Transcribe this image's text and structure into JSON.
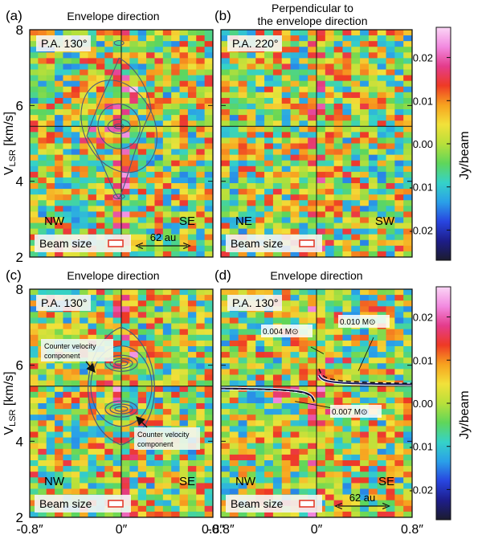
{
  "chart_data": {
    "type": "heatmap",
    "panels": [
      {
        "id": "a",
        "panel_label": "(a)",
        "title": "Envelope direction",
        "pa_label": "P.A. 130°",
        "left_dir": "NW",
        "right_dir": "SE",
        "beam_label": "Beam size",
        "scale_bar_label": "62 au",
        "contours": "observed-model"
      },
      {
        "id": "b",
        "panel_label": "(b)",
        "title": "Perpendicular to\nthe envelope direction",
        "pa_label": "P.A. 220°",
        "left_dir": "NE",
        "right_dir": "SW",
        "beam_label": "Beam size",
        "scale_bar_label": "",
        "contours": "none"
      },
      {
        "id": "c",
        "panel_label": "(c)",
        "title": "Envelope direction",
        "pa_label": "P.A. 130°",
        "left_dir": "NW",
        "right_dir": "SE",
        "beam_label": "Beam size",
        "scale_bar_label": "",
        "contours": "counter-velocity",
        "annotations": [
          {
            "text": "Counter velocity component",
            "position": "upper-left"
          },
          {
            "text": "Counter velocity component",
            "position": "lower-right"
          }
        ]
      },
      {
        "id": "d",
        "panel_label": "(d)",
        "title": "Envelope direction",
        "pa_label": "P.A. 130°",
        "left_dir": "NW",
        "right_dir": "SE",
        "beam_label": "Beam size",
        "scale_bar_label": "62 au",
        "contours": "keplerian-curves",
        "curve_labels": [
          {
            "text": "0.004 M⊙",
            "mass": 0.004
          },
          {
            "text": "0.010 M⊙",
            "mass": 0.01
          },
          {
            "text": "0.007 M⊙",
            "mass": 0.007
          }
        ]
      }
    ],
    "x_axis": {
      "label": "",
      "range": [
        -0.8,
        0.8
      ],
      "unit": "arcsec",
      "ticks": [
        -0.8,
        0.0,
        0.8
      ],
      "tick_labels": [
        "-0.8″",
        "0″",
        "0.8″"
      ]
    },
    "y_axis": {
      "label": "V_LSR [km/s]",
      "label_main": "V",
      "label_sub": "LSR",
      "label_rest": " [km/s]",
      "range": [
        2,
        8
      ],
      "ticks": [
        2,
        4,
        6,
        8
      ],
      "tick_labels": [
        "2",
        "4",
        "6",
        "8"
      ]
    },
    "systemic_velocity": 5.45,
    "colorbar": {
      "label": "Jy/beam",
      "range": [
        -0.027,
        0.027
      ],
      "ticks": [
        -0.02,
        -0.01,
        0.0,
        0.01,
        0.02
      ],
      "tick_labels": [
        "-0.02",
        "-0.01",
        "0.00",
        "0.01",
        "0.02"
      ],
      "colormap": [
        "#1c1c2e",
        "#1d1d8a",
        "#2845e0",
        "#2aa0e8",
        "#35d2c8",
        "#5fd65a",
        "#b8e03a",
        "#f2e13a",
        "#f7a21f",
        "#ee3a25",
        "#e43c8c",
        "#f28ae0",
        "#fbd6f6"
      ]
    },
    "grid": false,
    "legend": "colorbar-right"
  }
}
